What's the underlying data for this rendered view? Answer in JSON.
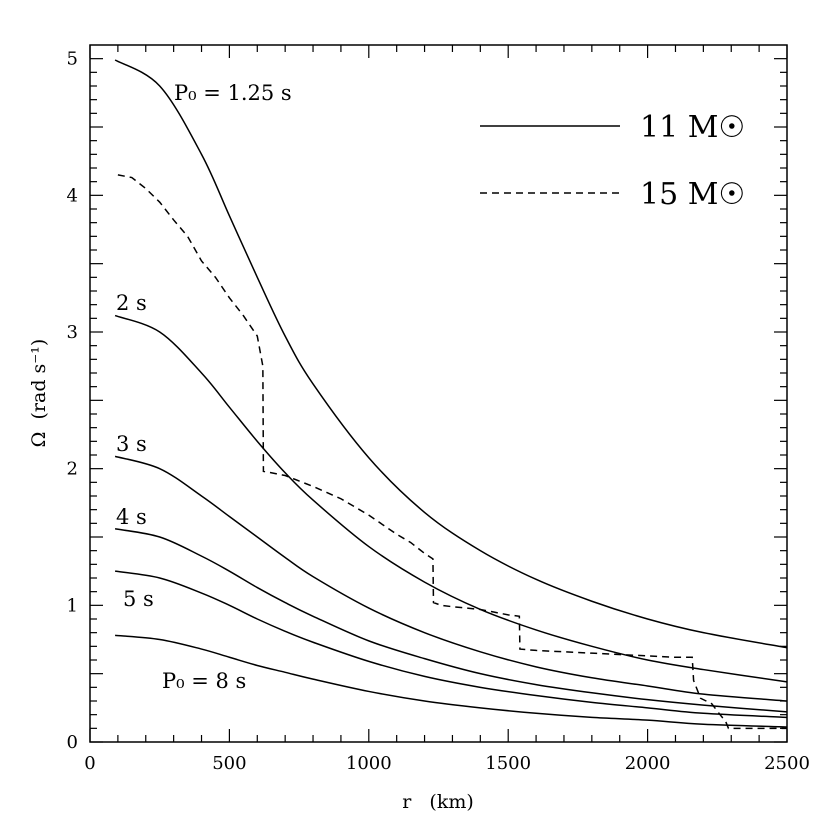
{
  "chart_data": {
    "type": "line",
    "title": "",
    "xlabel": "r   (km)",
    "ylabel": "Ω  (rad s⁻¹)",
    "xlim": [
      0,
      2500
    ],
    "ylim": [
      0,
      5.1
    ],
    "x_ticks": [
      "0",
      "500",
      "1000",
      "1500",
      "2000",
      "2500"
    ],
    "y_ticks": [
      "0",
      "1",
      "2",
      "3",
      "4",
      "5"
    ],
    "series": [
      {
        "name": "P0 = 1.25 s (11 Msun)",
        "style": "solid",
        "x": [
          90,
          250,
          400,
          500,
          600,
          700,
          800,
          1000,
          1200,
          1400,
          1600,
          1800,
          2000,
          2200,
          2500
        ],
        "y": [
          4.99,
          4.8,
          4.3,
          3.85,
          3.4,
          2.97,
          2.62,
          2.08,
          1.68,
          1.4,
          1.19,
          1.03,
          0.9,
          0.8,
          0.69
        ]
      },
      {
        "name": "2 s",
        "style": "solid",
        "x": [
          90,
          250,
          400,
          500,
          600,
          700,
          800,
          1000,
          1200,
          1400,
          1600,
          1800,
          2000,
          2200,
          2500
        ],
        "y": [
          3.12,
          3.0,
          2.7,
          2.45,
          2.2,
          1.97,
          1.77,
          1.43,
          1.17,
          0.97,
          0.82,
          0.7,
          0.6,
          0.53,
          0.44
        ]
      },
      {
        "name": "3 s",
        "style": "solid",
        "x": [
          90,
          250,
          400,
          500,
          600,
          700,
          800,
          1000,
          1200,
          1400,
          1600,
          1800,
          2000,
          2200,
          2500
        ],
        "y": [
          2.09,
          2.0,
          1.8,
          1.65,
          1.5,
          1.35,
          1.21,
          0.98,
          0.8,
          0.66,
          0.55,
          0.47,
          0.41,
          0.35,
          0.3
        ]
      },
      {
        "name": "4 s",
        "style": "solid",
        "x": [
          90,
          250,
          400,
          500,
          600,
          700,
          800,
          1000,
          1200,
          1400,
          1600,
          1800,
          2000,
          2200,
          2500
        ],
        "y": [
          1.56,
          1.5,
          1.36,
          1.25,
          1.13,
          1.02,
          0.92,
          0.74,
          0.61,
          0.5,
          0.42,
          0.36,
          0.31,
          0.27,
          0.22
        ]
      },
      {
        "name": "5 s",
        "style": "solid",
        "x": [
          90,
          250,
          400,
          500,
          600,
          700,
          800,
          1000,
          1200,
          1400,
          1600,
          1800,
          2000,
          2200,
          2500
        ],
        "y": [
          1.25,
          1.2,
          1.09,
          1.0,
          0.9,
          0.81,
          0.73,
          0.59,
          0.48,
          0.4,
          0.34,
          0.29,
          0.25,
          0.21,
          0.18
        ]
      },
      {
        "name": "P0 = 8 s",
        "style": "solid",
        "x": [
          90,
          250,
          400,
          500,
          600,
          700,
          800,
          1000,
          1200,
          1400,
          1600,
          1800,
          2000,
          2200,
          2500
        ],
        "y": [
          0.78,
          0.75,
          0.68,
          0.62,
          0.56,
          0.51,
          0.46,
          0.37,
          0.3,
          0.25,
          0.21,
          0.18,
          0.16,
          0.13,
          0.11
        ]
      },
      {
        "name": "15 Msun",
        "style": "dashed",
        "x": [
          100,
          150,
          200,
          250,
          300,
          350,
          400,
          450,
          500,
          550,
          600,
          620,
          622,
          650,
          700,
          800,
          900,
          1000,
          1050,
          1100,
          1150,
          1200,
          1230,
          1232,
          1260,
          1300,
          1400,
          1450,
          1500,
          1540,
          1542,
          1600,
          1800,
          2000,
          2100,
          2160,
          2165,
          2190,
          2230,
          2260,
          2280,
          2290,
          2350,
          2400,
          2500
        ],
        "y": [
          4.15,
          4.13,
          4.05,
          3.95,
          3.82,
          3.7,
          3.52,
          3.4,
          3.25,
          3.12,
          2.97,
          2.75,
          1.98,
          1.97,
          1.95,
          1.87,
          1.78,
          1.66,
          1.59,
          1.52,
          1.46,
          1.38,
          1.34,
          1.02,
          1.0,
          0.99,
          0.97,
          0.95,
          0.93,
          0.92,
          0.68,
          0.67,
          0.65,
          0.63,
          0.62,
          0.62,
          0.45,
          0.32,
          0.28,
          0.2,
          0.15,
          0.1,
          0.1,
          0.1,
          0.1
        ]
      }
    ],
    "annotations": [
      "P₀ = 1.25 s",
      "2 s",
      "3 s",
      "4 s",
      "5 s",
      "P₀ = 8 s"
    ],
    "legend": [
      {
        "label": "11 M☉",
        "style": "solid"
      },
      {
        "label": "15 M☉",
        "style": "dashed"
      }
    ],
    "legend_position": "top-right"
  }
}
